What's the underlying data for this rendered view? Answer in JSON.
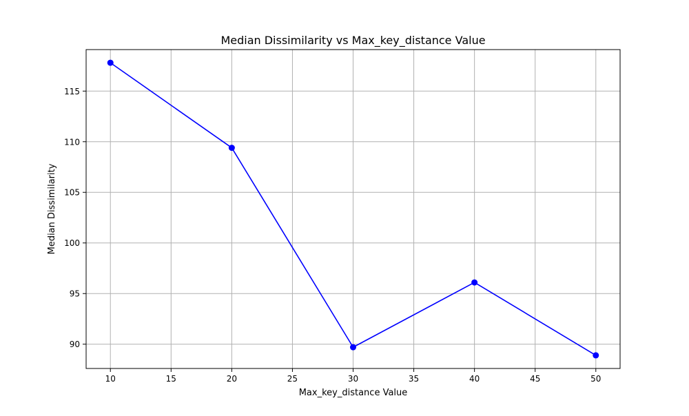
{
  "chart_data": {
    "type": "line",
    "title": "Median Dissimilarity vs Max_key_distance Value",
    "xlabel": "Max_key_distance Value",
    "ylabel": "Median Dissimilarity",
    "x": [
      10,
      20,
      30,
      40,
      50
    ],
    "series": [
      {
        "values": [
          117.8,
          109.4,
          89.7,
          96.1,
          88.9
        ],
        "color": "#0000ff",
        "marker": "circle"
      }
    ],
    "xlim": [
      8,
      52
    ],
    "ylim": [
      87.6,
      119.1
    ],
    "xticks": [
      10,
      15,
      20,
      25,
      30,
      35,
      40,
      45,
      50
    ],
    "yticks": [
      90,
      95,
      100,
      105,
      110,
      115
    ],
    "grid": true,
    "grid_color": "#b0b0b0"
  }
}
